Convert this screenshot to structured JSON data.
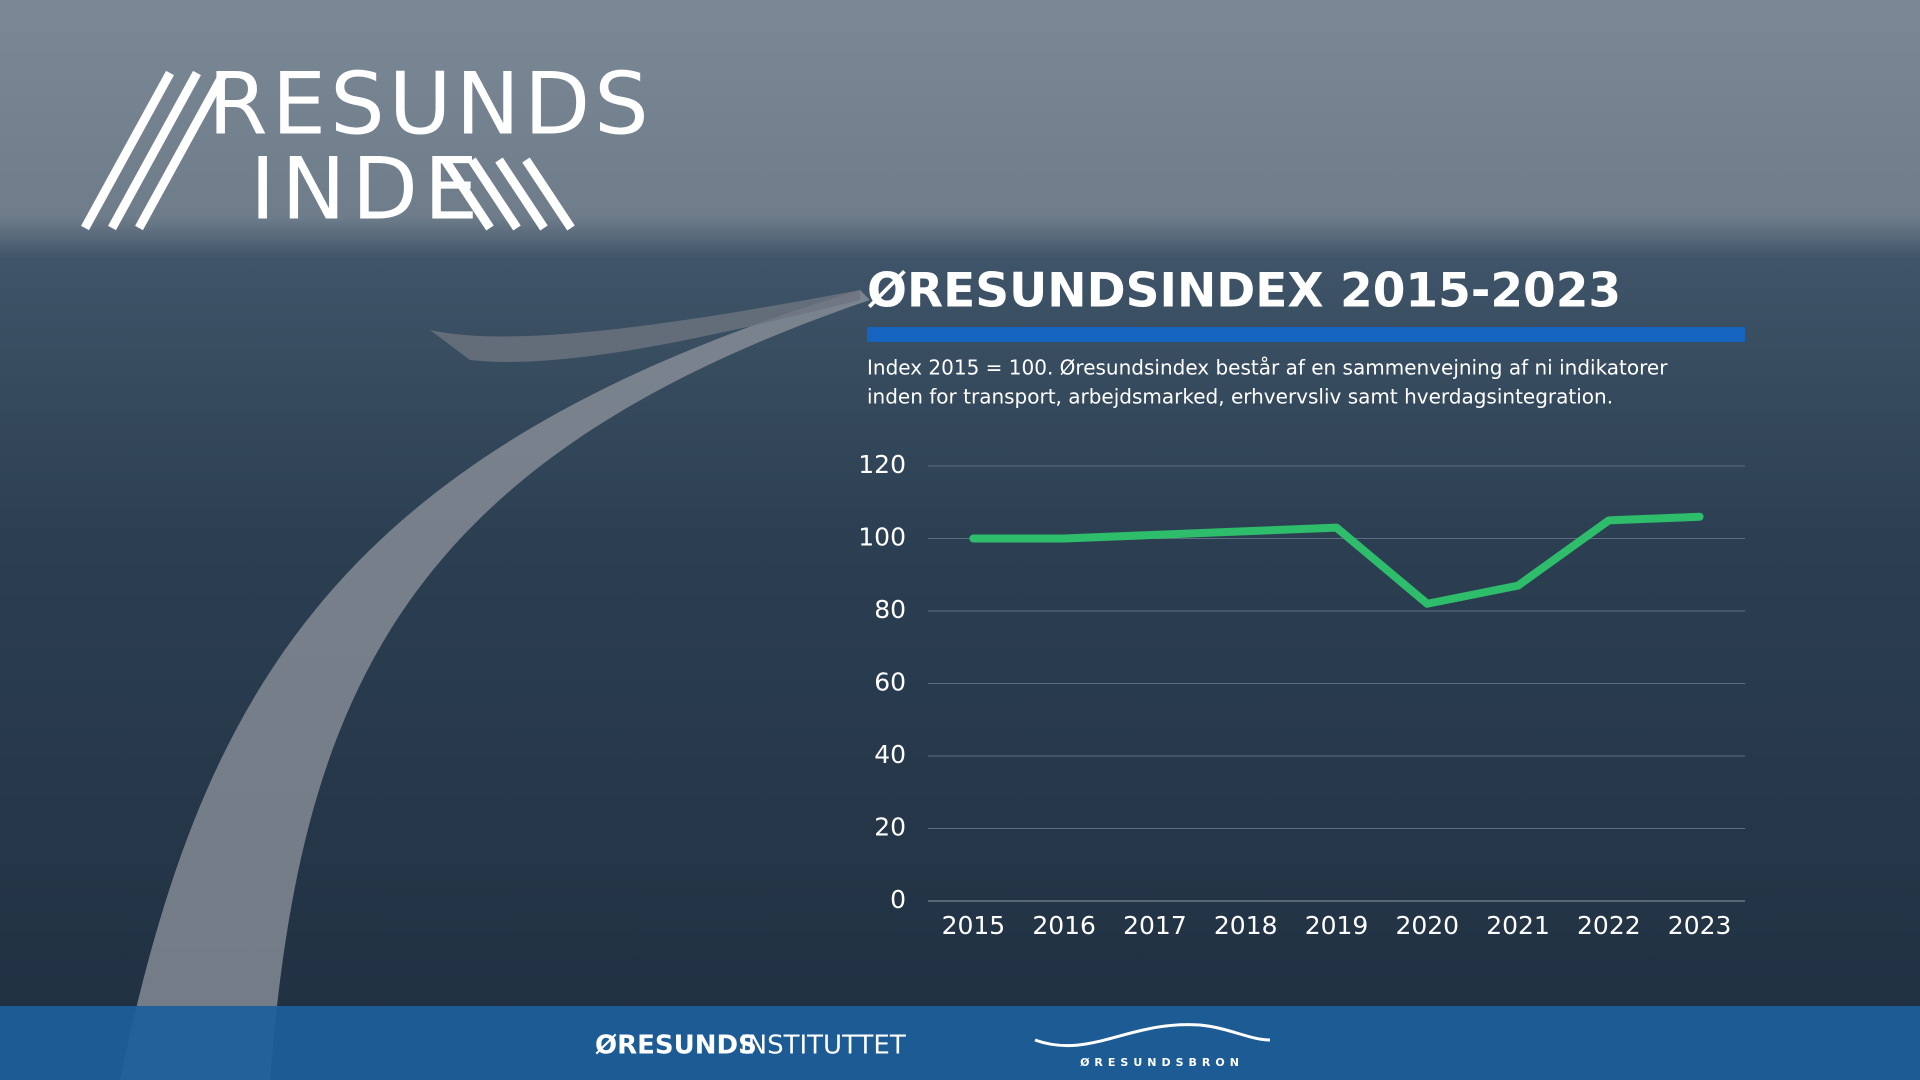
{
  "logo": {
    "line1": "RESUNDS",
    "line2": "INDE"
  },
  "chart_data": {
    "type": "line",
    "title": "ØRESUNDSINDEX 2015-2023",
    "subtitle": [
      "Index 2015 = 100. Øresundsindex består af en sammenvejning af ni indikatorer",
      "inden for transport, arbejdsmarked, erhvervsliv samt hverdagsintegration."
    ],
    "categories": [
      "2015",
      "2016",
      "2017",
      "2018",
      "2019",
      "2020",
      "2021",
      "2022",
      "2023"
    ],
    "values": [
      100,
      100,
      101,
      102,
      103,
      82,
      87,
      105,
      106
    ],
    "color": "#2ebd6b",
    "ylim": [
      0,
      120
    ],
    "yticks": [
      0,
      20,
      40,
      60,
      80,
      100,
      120
    ],
    "grid": true
  },
  "footer": {
    "institute_bold": "ØRESUNDS",
    "institute_rest": "INSTITUTTET",
    "bridge": "ØRESUNDSBRON"
  }
}
